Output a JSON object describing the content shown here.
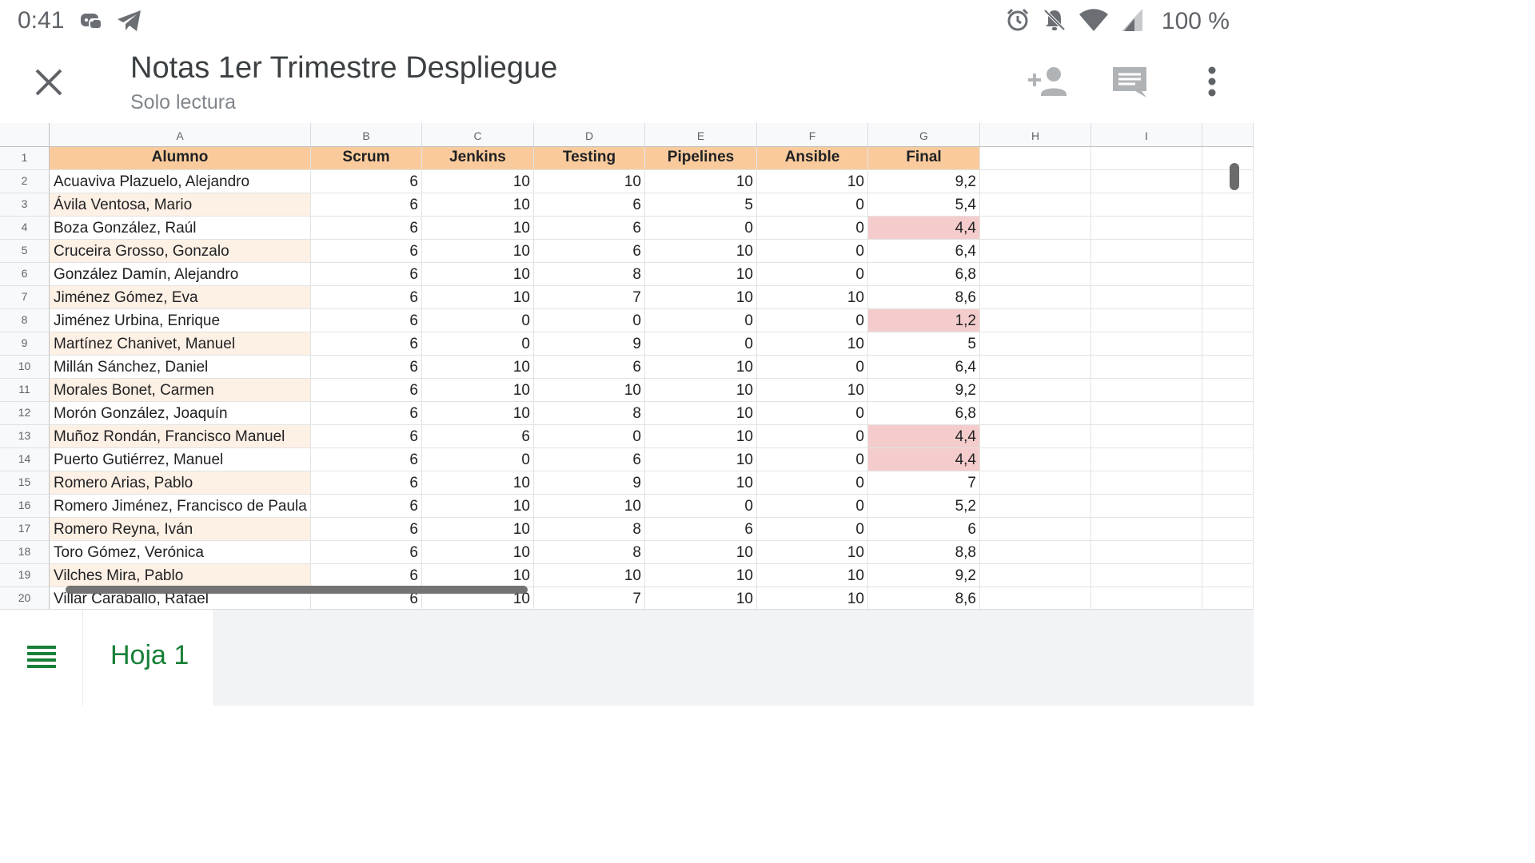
{
  "status_bar": {
    "time": "0:41",
    "battery": "100 %",
    "icons": [
      "discord-icon",
      "telegram-icon",
      "alarm-icon",
      "notifications-off-icon",
      "wifi-icon",
      "signal-icon"
    ]
  },
  "header": {
    "title": "Notas 1er Trimestre Despliegue",
    "subtitle": "Solo lectura",
    "icons": [
      "close-icon",
      "add-person-icon",
      "comment-icon",
      "more-vert-icon"
    ]
  },
  "grid": {
    "column_letters": [
      "A",
      "B",
      "C",
      "D",
      "E",
      "F",
      "G",
      "H",
      "I"
    ],
    "headers": [
      "Alumno",
      "Scrum",
      "Jenkins",
      "Testing",
      "Pipelines",
      "Ansible",
      "Final"
    ],
    "rows": [
      {
        "n": "2",
        "name": "Acuaviva Plazuelo, Alejandro",
        "v": [
          "6",
          "10",
          "10",
          "10",
          "10",
          "9,2"
        ],
        "low": false
      },
      {
        "n": "3",
        "name": "Ávila Ventosa, Mario",
        "v": [
          "6",
          "10",
          "6",
          "5",
          "0",
          "5,4"
        ],
        "low": false
      },
      {
        "n": "4",
        "name": "Boza González, Raúl",
        "v": [
          "6",
          "10",
          "6",
          "0",
          "0",
          "4,4"
        ],
        "low": true
      },
      {
        "n": "5",
        "name": "Cruceira Grosso, Gonzalo",
        "v": [
          "6",
          "10",
          "6",
          "10",
          "0",
          "6,4"
        ],
        "low": false
      },
      {
        "n": "6",
        "name": "González Damín, Alejandro",
        "v": [
          "6",
          "10",
          "8",
          "10",
          "0",
          "6,8"
        ],
        "low": false
      },
      {
        "n": "7",
        "name": "Jiménez Gómez, Eva",
        "v": [
          "6",
          "10",
          "7",
          "10",
          "10",
          "8,6"
        ],
        "low": false
      },
      {
        "n": "8",
        "name": "Jiménez Urbina, Enrique",
        "v": [
          "6",
          "0",
          "0",
          "0",
          "0",
          "1,2"
        ],
        "low": true
      },
      {
        "n": "9",
        "name": "Martínez Chanivet, Manuel",
        "v": [
          "6",
          "0",
          "9",
          "0",
          "10",
          "5"
        ],
        "low": false
      },
      {
        "n": "10",
        "name": "Millán Sánchez, Daniel",
        "v": [
          "6",
          "10",
          "6",
          "10",
          "0",
          "6,4"
        ],
        "low": false
      },
      {
        "n": "11",
        "name": "Morales Bonet, Carmen",
        "v": [
          "6",
          "10",
          "10",
          "10",
          "10",
          "9,2"
        ],
        "low": false
      },
      {
        "n": "12",
        "name": "Morón González, Joaquín",
        "v": [
          "6",
          "10",
          "8",
          "10",
          "0",
          "6,8"
        ],
        "low": false
      },
      {
        "n": "13",
        "name": "Muñoz Rondán, Francisco Manuel",
        "v": [
          "6",
          "6",
          "0",
          "10",
          "0",
          "4,4"
        ],
        "low": true
      },
      {
        "n": "14",
        "name": "Puerto Gutiérrez, Manuel",
        "v": [
          "6",
          "0",
          "6",
          "10",
          "0",
          "4,4"
        ],
        "low": true
      },
      {
        "n": "15",
        "name": "Romero Arias, Pablo",
        "v": [
          "6",
          "10",
          "9",
          "10",
          "0",
          "7"
        ],
        "low": false
      },
      {
        "n": "16",
        "name": "Romero Jiménez, Francisco de Paula",
        "v": [
          "6",
          "10",
          "10",
          "0",
          "0",
          "5,2"
        ],
        "low": false
      },
      {
        "n": "17",
        "name": "Romero Reyna, Iván",
        "v": [
          "6",
          "10",
          "8",
          "6",
          "0",
          "6"
        ],
        "low": false
      },
      {
        "n": "18",
        "name": "Toro Gómez, Verónica",
        "v": [
          "6",
          "10",
          "8",
          "10",
          "10",
          "8,8"
        ],
        "low": false
      },
      {
        "n": "19",
        "name": "Vilches Mira, Pablo",
        "v": [
          "6",
          "10",
          "10",
          "10",
          "10",
          "9,2"
        ],
        "low": false
      },
      {
        "n": "20",
        "name": "Villar Caraballo, Rafael",
        "v": [
          "6",
          "10",
          "7",
          "10",
          "10",
          "8,6"
        ],
        "low": false
      }
    ],
    "colors": {
      "header_fill": "#f9cb9c",
      "name_alt_fill": "#fdf0e4",
      "low_grade_fill": "#f4cccc"
    }
  },
  "bottom_bar": {
    "sheet_tab": "Hoja 1",
    "menu_icon": "sheets-list-icon"
  }
}
